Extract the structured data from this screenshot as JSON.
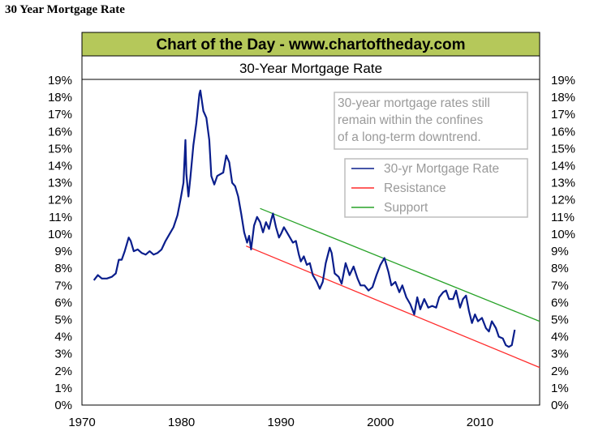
{
  "page_heading": "30 Year Mortgage Rate",
  "banner": "Chart of the Day - www.chartoftheday.com",
  "colors": {
    "banner_bg": "#b5c85a",
    "mortgage_line": "#0a1e8c",
    "resistance_line": "#ff2b2b",
    "support_line": "#29a329",
    "note_text": "#9a9a9a"
  },
  "chart_data": {
    "type": "line",
    "title": "30-Year Mortgage Rate",
    "annotation": [
      "30-year mortgage rates still",
      "remain within the confines",
      "of a long-term downtrend."
    ],
    "legend_position": "top-right",
    "grid": false,
    "xlim": [
      1970,
      2016
    ],
    "ylim": [
      0,
      19
    ],
    "x_ticks": [
      "1970",
      "1980",
      "1990",
      "2000",
      "2010"
    ],
    "x_tick_values": [
      1970,
      1980,
      1990,
      2000,
      2010
    ],
    "y_ticks": [
      "0%",
      "1%",
      "2%",
      "3%",
      "4%",
      "5%",
      "6%",
      "7%",
      "8%",
      "9%",
      "10%",
      "11%",
      "12%",
      "13%",
      "14%",
      "15%",
      "16%",
      "17%",
      "18%",
      "19%"
    ],
    "series": [
      {
        "name": "30-yr Mortgage Rate",
        "color": "#0a1e8c",
        "points": [
          [
            1971.2,
            7.3
          ],
          [
            1971.6,
            7.6
          ],
          [
            1972.0,
            7.4
          ],
          [
            1972.5,
            7.4
          ],
          [
            1973.0,
            7.5
          ],
          [
            1973.4,
            7.7
          ],
          [
            1973.7,
            8.5
          ],
          [
            1974.0,
            8.5
          ],
          [
            1974.3,
            9.0
          ],
          [
            1974.7,
            9.8
          ],
          [
            1974.9,
            9.6
          ],
          [
            1975.2,
            9.0
          ],
          [
            1975.6,
            9.1
          ],
          [
            1976.0,
            8.9
          ],
          [
            1976.4,
            8.8
          ],
          [
            1976.8,
            9.0
          ],
          [
            1977.2,
            8.8
          ],
          [
            1977.6,
            8.9
          ],
          [
            1978.0,
            9.1
          ],
          [
            1978.4,
            9.6
          ],
          [
            1978.8,
            10.0
          ],
          [
            1979.2,
            10.4
          ],
          [
            1979.6,
            11.1
          ],
          [
            1979.9,
            12.0
          ],
          [
            1980.2,
            13.0
          ],
          [
            1980.4,
            15.5
          ],
          [
            1980.5,
            13.5
          ],
          [
            1980.7,
            12.2
          ],
          [
            1980.9,
            13.3
          ],
          [
            1981.2,
            15.2
          ],
          [
            1981.5,
            16.5
          ],
          [
            1981.8,
            18.2
          ],
          [
            1981.9,
            18.4
          ],
          [
            1982.2,
            17.2
          ],
          [
            1982.5,
            16.8
          ],
          [
            1982.8,
            15.5
          ],
          [
            1983.0,
            13.4
          ],
          [
            1983.3,
            12.9
          ],
          [
            1983.6,
            13.4
          ],
          [
            1983.9,
            13.5
          ],
          [
            1984.2,
            13.6
          ],
          [
            1984.5,
            14.6
          ],
          [
            1984.8,
            14.2
          ],
          [
            1985.1,
            13.0
          ],
          [
            1985.4,
            12.8
          ],
          [
            1985.7,
            12.2
          ],
          [
            1986.0,
            11.2
          ],
          [
            1986.3,
            10.1
          ],
          [
            1986.6,
            9.5
          ],
          [
            1986.8,
            9.9
          ],
          [
            1987.0,
            9.1
          ],
          [
            1987.3,
            10.5
          ],
          [
            1987.6,
            11.0
          ],
          [
            1987.9,
            10.7
          ],
          [
            1988.2,
            10.1
          ],
          [
            1988.5,
            10.7
          ],
          [
            1988.8,
            10.3
          ],
          [
            1989.0,
            10.8
          ],
          [
            1989.2,
            11.2
          ],
          [
            1989.5,
            10.4
          ],
          [
            1989.8,
            9.8
          ],
          [
            1990.0,
            10.0
          ],
          [
            1990.3,
            10.4
          ],
          [
            1990.6,
            10.1
          ],
          [
            1990.9,
            9.8
          ],
          [
            1991.2,
            9.5
          ],
          [
            1991.5,
            9.6
          ],
          [
            1991.8,
            8.8
          ],
          [
            1992.0,
            8.4
          ],
          [
            1992.3,
            8.7
          ],
          [
            1992.6,
            8.2
          ],
          [
            1992.9,
            8.3
          ],
          [
            1993.2,
            7.6
          ],
          [
            1993.6,
            7.2
          ],
          [
            1993.9,
            6.8
          ],
          [
            1994.2,
            7.2
          ],
          [
            1994.5,
            8.3
          ],
          [
            1994.9,
            9.2
          ],
          [
            1995.1,
            8.9
          ],
          [
            1995.4,
            7.7
          ],
          [
            1995.8,
            7.5
          ],
          [
            1996.1,
            7.1
          ],
          [
            1996.5,
            8.3
          ],
          [
            1996.9,
            7.6
          ],
          [
            1997.3,
            8.1
          ],
          [
            1997.7,
            7.4
          ],
          [
            1998.0,
            7.0
          ],
          [
            1998.4,
            7.0
          ],
          [
            1998.8,
            6.7
          ],
          [
            1999.2,
            6.9
          ],
          [
            1999.6,
            7.6
          ],
          [
            2000.0,
            8.2
          ],
          [
            2000.4,
            8.6
          ],
          [
            2000.8,
            7.8
          ],
          [
            2001.1,
            7.0
          ],
          [
            2001.5,
            7.2
          ],
          [
            2001.9,
            6.6
          ],
          [
            2002.2,
            7.0
          ],
          [
            2002.6,
            6.3
          ],
          [
            2003.0,
            5.9
          ],
          [
            2003.4,
            5.3
          ],
          [
            2003.7,
            6.3
          ],
          [
            2004.0,
            5.6
          ],
          [
            2004.4,
            6.2
          ],
          [
            2004.8,
            5.7
          ],
          [
            2005.2,
            5.8
          ],
          [
            2005.6,
            5.7
          ],
          [
            2005.9,
            6.3
          ],
          [
            2006.3,
            6.6
          ],
          [
            2006.6,
            6.7
          ],
          [
            2006.9,
            6.2
          ],
          [
            2007.3,
            6.2
          ],
          [
            2007.6,
            6.7
          ],
          [
            2008.0,
            5.7
          ],
          [
            2008.3,
            6.2
          ],
          [
            2008.6,
            6.4
          ],
          [
            2008.9,
            5.5
          ],
          [
            2009.2,
            4.8
          ],
          [
            2009.5,
            5.3
          ],
          [
            2009.8,
            4.9
          ],
          [
            2010.2,
            5.1
          ],
          [
            2010.6,
            4.5
          ],
          [
            2010.9,
            4.3
          ],
          [
            2011.2,
            4.9
          ],
          [
            2011.6,
            4.5
          ],
          [
            2011.9,
            4.0
          ],
          [
            2012.3,
            3.9
          ],
          [
            2012.6,
            3.5
          ],
          [
            2012.9,
            3.4
          ],
          [
            2013.2,
            3.5
          ],
          [
            2013.5,
            4.4
          ]
        ]
      },
      {
        "name": "Resistance",
        "color": "#ff2b2b",
        "points": [
          [
            1986.5,
            9.3
          ],
          [
            2016,
            2.2
          ]
        ]
      },
      {
        "name": "Support",
        "color": "#29a329",
        "points": [
          [
            1987.9,
            11.5
          ],
          [
            2016,
            4.9
          ]
        ]
      }
    ]
  }
}
